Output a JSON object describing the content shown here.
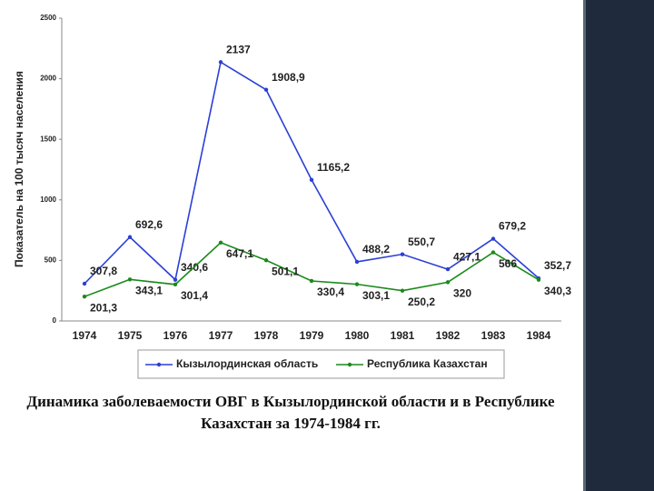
{
  "chart_data": {
    "type": "line",
    "y_label": "Показатель на 100 тысяч населения",
    "caption": "Динамика заболеваемости ОВГ в Кызылординской области и в Республике Казахстан за 1974-1984 гг.",
    "categories": [
      "1974",
      "1975",
      "1976",
      "1977",
      "1978",
      "1979",
      "1980",
      "1981",
      "1982",
      "1983",
      "1984"
    ],
    "series": [
      {
        "name": "Кызылординская область",
        "color": "#2b3fd6",
        "values": [
          307.8,
          692.6,
          340.6,
          2137,
          1908.9,
          1165.2,
          488.2,
          550.7,
          427.1,
          679.2,
          352.7
        ],
        "value_labels": [
          "307,8",
          "692,6",
          "340,6",
          "2137",
          "1908,9",
          "1165,2",
          "488,2",
          "550,7",
          "427,1",
          "679,2",
          "352,7"
        ]
      },
      {
        "name": "Республика Казахстан",
        "color": "#1a8a1a",
        "values": [
          201.3,
          343.1,
          301.4,
          647.1,
          501.1,
          330.4,
          303.1,
          250.2,
          320,
          566,
          340.3
        ],
        "value_labels": [
          "201,3",
          "343,1",
          "301,4",
          "647,1",
          "501,1",
          "330,4",
          "303,1",
          "250,2",
          "320",
          "566",
          "340,3"
        ]
      }
    ],
    "ylim": [
      0,
      2500
    ],
    "yticks": [
      0,
      500,
      1000,
      1500,
      2000,
      2500
    ],
    "legend": "bottom"
  }
}
